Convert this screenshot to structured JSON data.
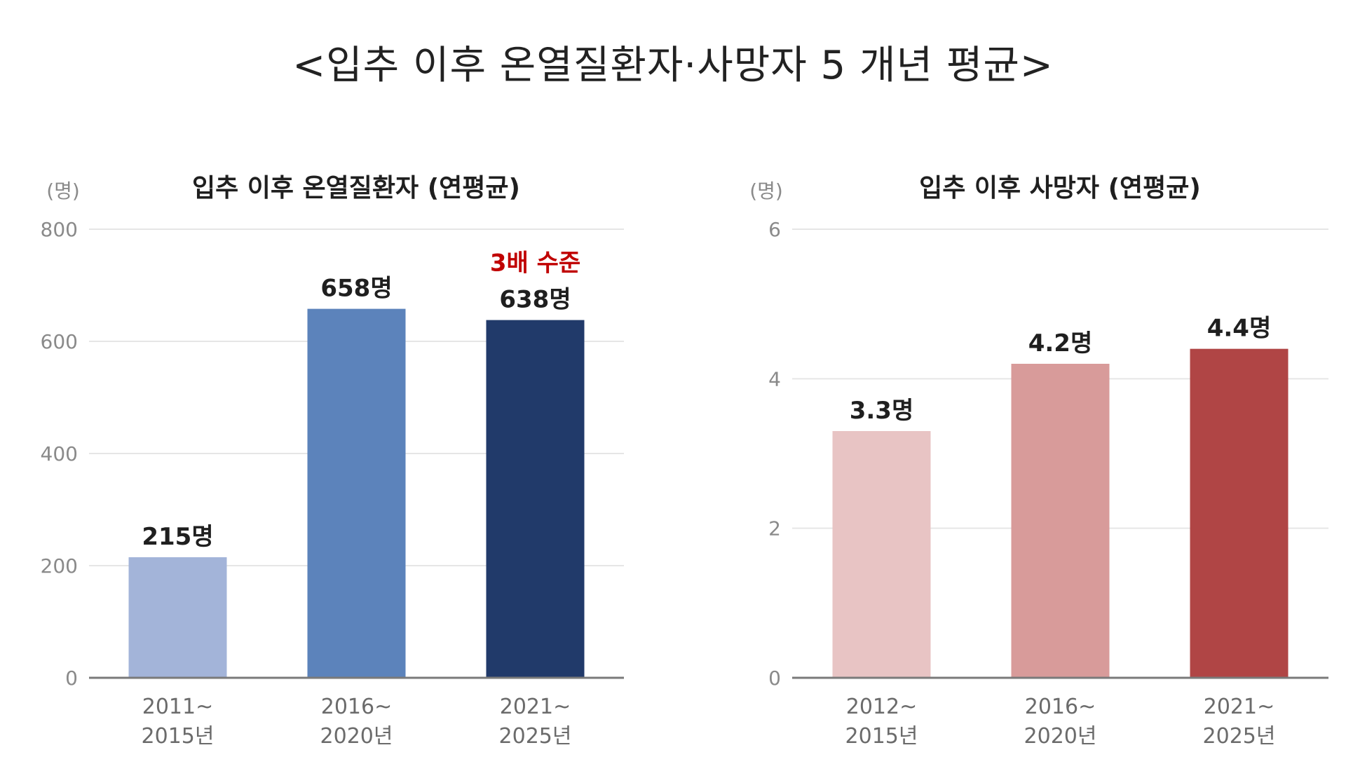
{
  "title": "<입추 이후 온열질환자·사망자 5 개년 평균>",
  "chart_data": [
    {
      "type": "bar",
      "title": "입추 이후 온열질환자 (연평균)",
      "unit_label": "(명)",
      "categories": [
        [
          "2011~",
          "2015년"
        ],
        [
          "2016~",
          "2020년"
        ],
        [
          "2021~",
          "2025년"
        ]
      ],
      "values": [
        215,
        658,
        638
      ],
      "value_labels": [
        "215명",
        "658명",
        "638명"
      ],
      "annotation": {
        "index": 2,
        "text": "3배 수준"
      },
      "ylim": [
        0,
        800
      ],
      "yticks": [
        0,
        200,
        400,
        600,
        800
      ],
      "colors": [
        "#a3b4d9",
        "#5c83bb",
        "#213a6a"
      ],
      "grid": true
    },
    {
      "type": "bar",
      "title": "입추 이후 사망자 (연평균)",
      "unit_label": "(명)",
      "categories": [
        [
          "2012~",
          "2015년"
        ],
        [
          "2016~",
          "2020년"
        ],
        [
          "2021~",
          "2025년"
        ]
      ],
      "values": [
        3.3,
        4.2,
        4.4
      ],
      "value_labels": [
        "3.3명",
        "4.2명",
        "4.4명"
      ],
      "ylim": [
        0,
        6
      ],
      "yticks": [
        0,
        2,
        4,
        6
      ],
      "colors": [
        "#e8c4c4",
        "#d89b9a",
        "#b04545"
      ],
      "grid": true
    }
  ]
}
